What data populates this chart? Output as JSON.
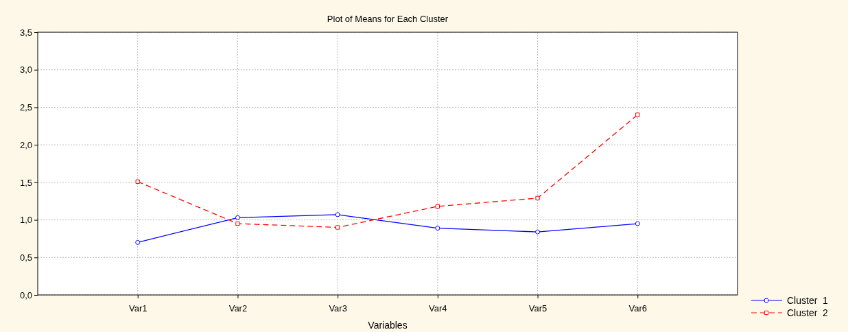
{
  "chart_data": {
    "type": "line",
    "title": "Plot of Means for Each Cluster",
    "xlabel": "Variables",
    "categories": [
      "Var1",
      "Var2",
      "Var3",
      "Var4",
      "Var5",
      "Var6"
    ],
    "series": [
      {
        "name": "Cluster  1",
        "color": "#0000ff",
        "marker": "circle",
        "line_style": "solid",
        "values": [
          0.7,
          1.03,
          1.07,
          0.89,
          0.84,
          0.95
        ]
      },
      {
        "name": "Cluster  2",
        "color": "#ff0000",
        "marker": "square",
        "line_style": "dashed",
        "values": [
          1.51,
          0.95,
          0.9,
          1.18,
          1.29,
          2.4
        ]
      }
    ],
    "ylim": [
      0,
      3.5
    ],
    "yticks": [
      {
        "value": 0,
        "label": "0,0"
      },
      {
        "value": 0.5,
        "label": "0,5"
      },
      {
        "value": 1,
        "label": "1,0"
      },
      {
        "value": 1.5,
        "label": "1,5"
      },
      {
        "value": 2,
        "label": "2,0"
      },
      {
        "value": 2.5,
        "label": "2,5"
      },
      {
        "value": 3,
        "label": "3,0"
      },
      {
        "value": 3.5,
        "label": "3,5"
      }
    ],
    "grid": true,
    "legend": "bottom right"
  }
}
